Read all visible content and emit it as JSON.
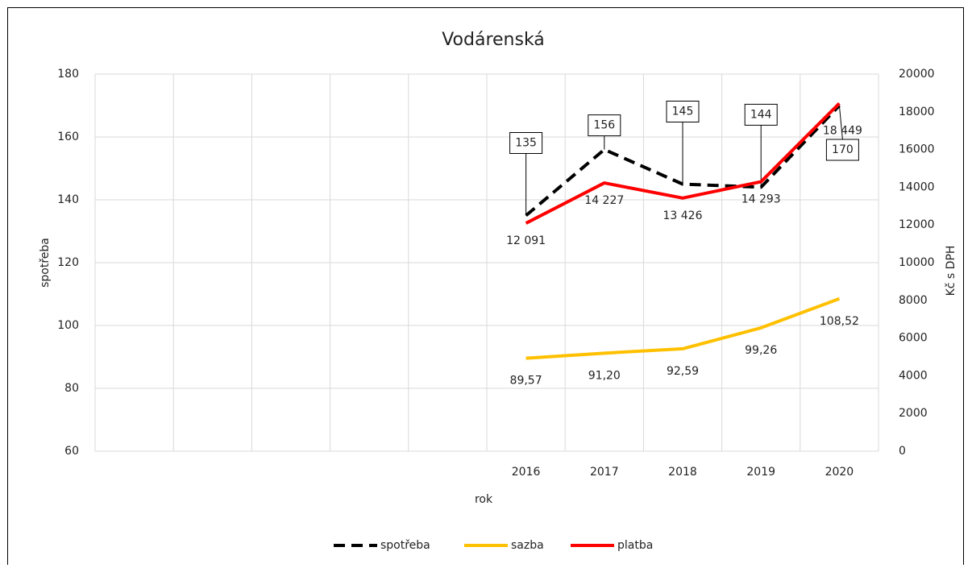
{
  "chart_data": {
    "type": "line",
    "title": "Vodárenská",
    "x_label": "rok",
    "y_label": "spotřeba",
    "y2_label": "Kč s DPH",
    "categories": [
      null,
      null,
      null,
      null,
      null,
      "2016",
      "2017",
      "2018",
      "2019",
      "2020"
    ],
    "ylim": [
      60,
      180
    ],
    "yticks": [
      60,
      80,
      100,
      120,
      140,
      160,
      180
    ],
    "y2lim": [
      0,
      20000
    ],
    "y2ticks": [
      0,
      2000,
      4000,
      6000,
      8000,
      10000,
      12000,
      14000,
      16000,
      18000,
      20000
    ],
    "grid": true,
    "legend": "bottom",
    "series": [
      {
        "name": "spotřeba",
        "color": "#000000",
        "dashed": true,
        "callout": true,
        "values": [
          null,
          null,
          null,
          null,
          null,
          135,
          156,
          145,
          144,
          170
        ]
      },
      {
        "name": "sazba",
        "color": "#ffc000",
        "values": [
          null,
          null,
          null,
          null,
          null,
          89.57,
          91.2,
          92.59,
          99.26,
          108.52
        ],
        "value_labels": [
          null,
          null,
          null,
          null,
          null,
          "89,57",
          "91,20",
          "92,59",
          "99,26",
          "108,52"
        ]
      },
      {
        "name": "platba",
        "color": "#ff0000",
        "axis": "y2",
        "values": [
          null,
          null,
          null,
          null,
          null,
          12091,
          14227,
          13426,
          14293,
          18449
        ],
        "value_labels": [
          null,
          null,
          null,
          null,
          null,
          "12 091",
          "14 227",
          "13 426",
          "14 293",
          "18 449"
        ]
      }
    ]
  }
}
